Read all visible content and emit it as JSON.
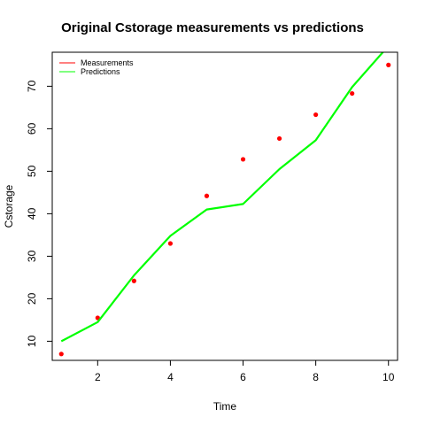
{
  "chart_data": {
    "type": "line",
    "title": "Original Cstorage measurements vs predictions",
    "xlabel": "Time",
    "ylabel": "Cstorage",
    "xlim": [
      0.75,
      10.25
    ],
    "ylim": [
      5.5,
      78
    ],
    "x_ticks": [
      2,
      4,
      6,
      8,
      10
    ],
    "y_ticks": [
      10,
      20,
      30,
      40,
      50,
      60,
      70
    ],
    "grid": false,
    "legend_position": "top-left",
    "series": [
      {
        "name": "Measurements",
        "render": "points",
        "color": "#ff0000",
        "x": [
          1,
          2,
          3,
          4,
          5,
          6,
          7,
          8,
          9,
          10
        ],
        "y": [
          7.0,
          15.5,
          24.2,
          33.0,
          44.2,
          52.8,
          57.7,
          63.3,
          68.3,
          75.0
        ]
      },
      {
        "name": "Predictions",
        "render": "line",
        "color": "#00ff00",
        "x": [
          1,
          2,
          3,
          4,
          5,
          6,
          7,
          8,
          9,
          10
        ],
        "y": [
          10.0,
          14.5,
          25.5,
          34.8,
          41.0,
          42.3,
          50.5,
          57.3,
          69.8,
          79.5
        ]
      }
    ]
  }
}
